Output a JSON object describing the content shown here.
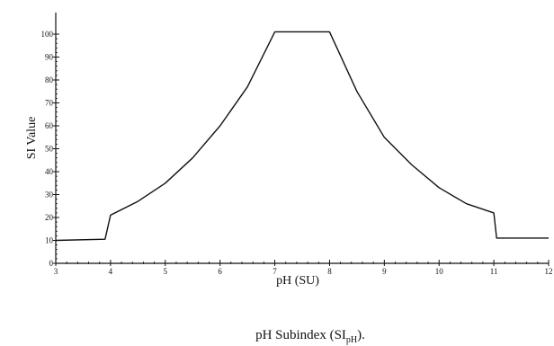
{
  "chart_data": {
    "type": "line",
    "title": "",
    "xlabel": "pH (SU)",
    "ylabel": "SI Value",
    "xlim": [
      3,
      12
    ],
    "ylim": [
      0,
      110
    ],
    "x_ticks": [
      3,
      4,
      5,
      6,
      7,
      8,
      9,
      10,
      11,
      12
    ],
    "y_ticks": [
      0,
      10,
      20,
      30,
      40,
      50,
      60,
      70,
      80,
      90,
      100
    ],
    "grid": false,
    "series": [
      {
        "x": [
          3,
          3.9,
          4.0,
          4.5,
          5.0,
          5.5,
          6.0,
          6.5,
          7.0,
          7.5,
          8.0,
          8.5,
          9.0,
          9.5,
          10.0,
          10.5,
          11.0,
          11.05,
          12
        ],
        "y": [
          10,
          10.5,
          21,
          27,
          35,
          46,
          60,
          77,
          101,
          101,
          101,
          75,
          55,
          43,
          33,
          26,
          22,
          11,
          11
        ]
      }
    ]
  },
  "caption": {
    "text": "pH Subindex (SI",
    "subscript": "pH",
    "suffix": ")."
  }
}
